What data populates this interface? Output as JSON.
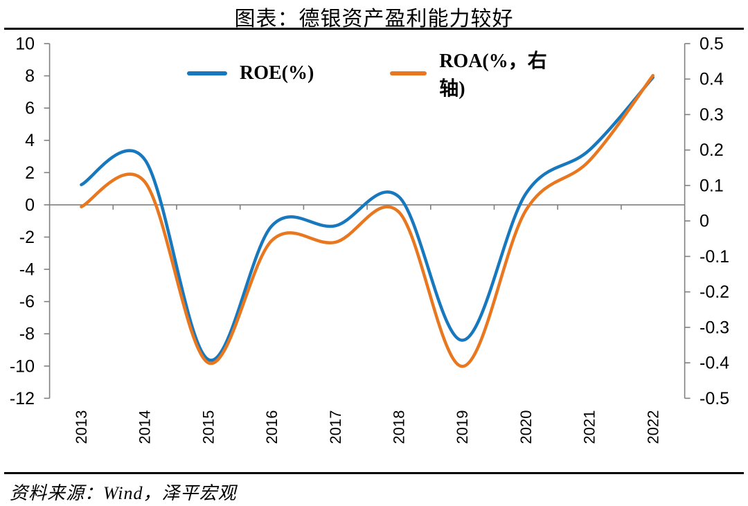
{
  "title": "图表：德银资产盈利能力较好",
  "source_note": "资料来源：Wind，泽平宏观",
  "colors": {
    "roe_blue": "#1878BE",
    "roa_orange": "#E8771F",
    "axis_gray": "#7F7F7F",
    "text_black": "#000000"
  },
  "legend": {
    "items": [
      {
        "label": "ROE(%)",
        "series": "roe"
      },
      {
        "label": "ROA(%，右轴)",
        "series": "roa"
      }
    ]
  },
  "chart_data": {
    "type": "line",
    "title": "图表：德银资产盈利能力较好",
    "categories": [
      "2013",
      "2014",
      "2015",
      "2016",
      "2017",
      "2018",
      "2019",
      "2020",
      "2021",
      "2022"
    ],
    "series": [
      {
        "name": "ROE(%)",
        "axis": "left",
        "color": "#1878BE",
        "values": [
          1.25,
          2.8,
          -9.6,
          -1.3,
          -1.3,
          0.5,
          -8.4,
          0.7,
          3.4,
          7.9
        ]
      },
      {
        "name": "ROA(%，右轴)",
        "axis": "right",
        "color": "#E8771F",
        "values": [
          0.04,
          0.11,
          -0.4,
          -0.055,
          -0.06,
          0.025,
          -0.41,
          0.03,
          0.17,
          0.41
        ]
      }
    ],
    "left_axis": {
      "min": -12,
      "max": 10,
      "ticks": [
        10,
        8,
        6,
        4,
        2,
        0,
        -2,
        -4,
        -6,
        -8,
        -10,
        -12
      ]
    },
    "right_axis": {
      "min": -0.5,
      "max": 0.5,
      "ticks": [
        0.5,
        0.4,
        0.3,
        0.2,
        0.1,
        0,
        -0.1,
        -0.2,
        -0.3,
        -0.4,
        -0.5
      ]
    },
    "smoothed": true,
    "zero_gridline_on_left_axis": true,
    "legend_position": "top-center",
    "grid": "off"
  }
}
